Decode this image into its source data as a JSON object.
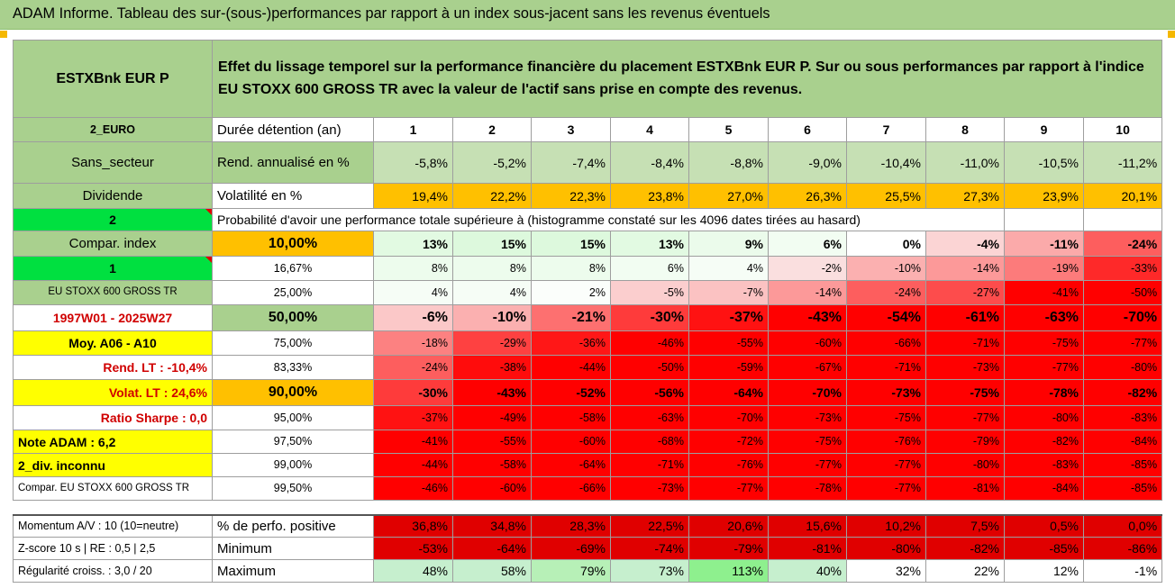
{
  "title": "ADAM Informe. Tableau des sur-(sous-)performances par rapport à un index sous-jacent sans les revenus éventuels",
  "header": {
    "fund": "ESTXBnk EUR P",
    "description": "Effet du lissage temporel sur la performance financière du placement ESTXBnk EUR P. Sur ou sous performances par rapport à l'indice EU STOXX 600 GROSS TR avec la valeur de l'actif sans prise en compte des revenus."
  },
  "left_panel": {
    "currency": "2_EURO",
    "sector": "Sans_secteur",
    "dividend": "Dividende",
    "code_2": "2",
    "compar_index": "Compar. index",
    "code_1": "1",
    "index_name": "EU STOXX 600 GROSS TR",
    "period": "1997W01 - 2025W27",
    "moy": "Moy. A06 - A10",
    "rend_lt": "Rend. LT :   -10,4%",
    "volat_lt": "Volat. LT :    24,6%",
    "ratio_sharpe": "Ratio Sharpe :    0,0",
    "note_adam": "Note ADAM : 6,2",
    "div_inconnu": "2_div. inconnu",
    "compar_full": "Compar. EU STOXX 600 GROSS TR"
  },
  "stats_header": {
    "duree_label": "Durée détention (an)",
    "rend_label": "Rend. annualisé en %",
    "vol_label": "Volatilité en %",
    "years": [
      "1",
      "2",
      "3",
      "4",
      "5",
      "6",
      "7",
      "8",
      "9",
      "10"
    ],
    "rend": [
      "-5,8%",
      "-5,2%",
      "-7,4%",
      "-8,4%",
      "-8,8%",
      "-9,0%",
      "-10,4%",
      "-11,0%",
      "-10,5%",
      "-11,2%"
    ],
    "vol": [
      "19,4%",
      "22,2%",
      "22,3%",
      "23,8%",
      "27,0%",
      "26,3%",
      "25,5%",
      "27,3%",
      "23,9%",
      "20,1%"
    ]
  },
  "prob_title": "Probabilité d'avoir une performance totale supérieure à (histogramme constaté sur les 4096 dates tirées au hasard)",
  "prob_rows": [
    {
      "threshold": "10,00%",
      "values": [
        "13%",
        "15%",
        "15%",
        "13%",
        "9%",
        "6%",
        "0%",
        "-4%",
        "-11%",
        "-24%"
      ]
    },
    {
      "threshold": "16,67%",
      "values": [
        "8%",
        "8%",
        "8%",
        "6%",
        "4%",
        "-2%",
        "-10%",
        "-14%",
        "-19%",
        "-33%"
      ]
    },
    {
      "threshold": "25,00%",
      "values": [
        "4%",
        "4%",
        "2%",
        "-5%",
        "-7%",
        "-14%",
        "-24%",
        "-27%",
        "-41%",
        "-50%"
      ]
    },
    {
      "threshold": "50,00%",
      "values": [
        "-6%",
        "-10%",
        "-21%",
        "-30%",
        "-37%",
        "-43%",
        "-54%",
        "-61%",
        "-63%",
        "-70%"
      ]
    },
    {
      "threshold": "75,00%",
      "values": [
        "-18%",
        "-29%",
        "-36%",
        "-46%",
        "-55%",
        "-60%",
        "-66%",
        "-71%",
        "-75%",
        "-77%"
      ]
    },
    {
      "threshold": "83,33%",
      "values": [
        "-24%",
        "-38%",
        "-44%",
        "-50%",
        "-59%",
        "-67%",
        "-71%",
        "-73%",
        "-77%",
        "-80%"
      ]
    },
    {
      "threshold": "90,00%",
      "values": [
        "-30%",
        "-43%",
        "-52%",
        "-56%",
        "-64%",
        "-70%",
        "-73%",
        "-75%",
        "-78%",
        "-82%"
      ]
    },
    {
      "threshold": "95,00%",
      "values": [
        "-37%",
        "-49%",
        "-58%",
        "-63%",
        "-70%",
        "-73%",
        "-75%",
        "-77%",
        "-80%",
        "-83%"
      ]
    },
    {
      "threshold": "97,50%",
      "values": [
        "-41%",
        "-55%",
        "-60%",
        "-68%",
        "-72%",
        "-75%",
        "-76%",
        "-79%",
        "-82%",
        "-84%"
      ]
    },
    {
      "threshold": "99,00%",
      "values": [
        "-44%",
        "-58%",
        "-64%",
        "-71%",
        "-76%",
        "-77%",
        "-77%",
        "-80%",
        "-83%",
        "-85%"
      ]
    },
    {
      "threshold": "99,50%",
      "values": [
        "-46%",
        "-60%",
        "-66%",
        "-73%",
        "-77%",
        "-78%",
        "-77%",
        "-81%",
        "-84%",
        "-85%"
      ]
    }
  ],
  "bottom": {
    "momentum": "Momentum A/V : 10 (10=neutre)",
    "zscore": "Z-score 10 s | RE : 0,5 | 2,5",
    "regularite": "Régularité croiss. : 3,0 / 20",
    "pos_label": "% de perfo. positive",
    "min_label": "Minimum",
    "max_label": "Maximum",
    "pos": [
      "36,8%",
      "34,8%",
      "28,3%",
      "22,5%",
      "20,6%",
      "15,6%",
      "10,2%",
      "7,5%",
      "0,5%",
      "0,0%"
    ],
    "min": [
      "-53%",
      "-64%",
      "-69%",
      "-74%",
      "-79%",
      "-81%",
      "-80%",
      "-82%",
      "-85%",
      "-86%"
    ],
    "max": [
      "48%",
      "58%",
      "79%",
      "73%",
      "113%",
      "40%",
      "32%",
      "22%",
      "12%",
      "-1%"
    ]
  }
}
